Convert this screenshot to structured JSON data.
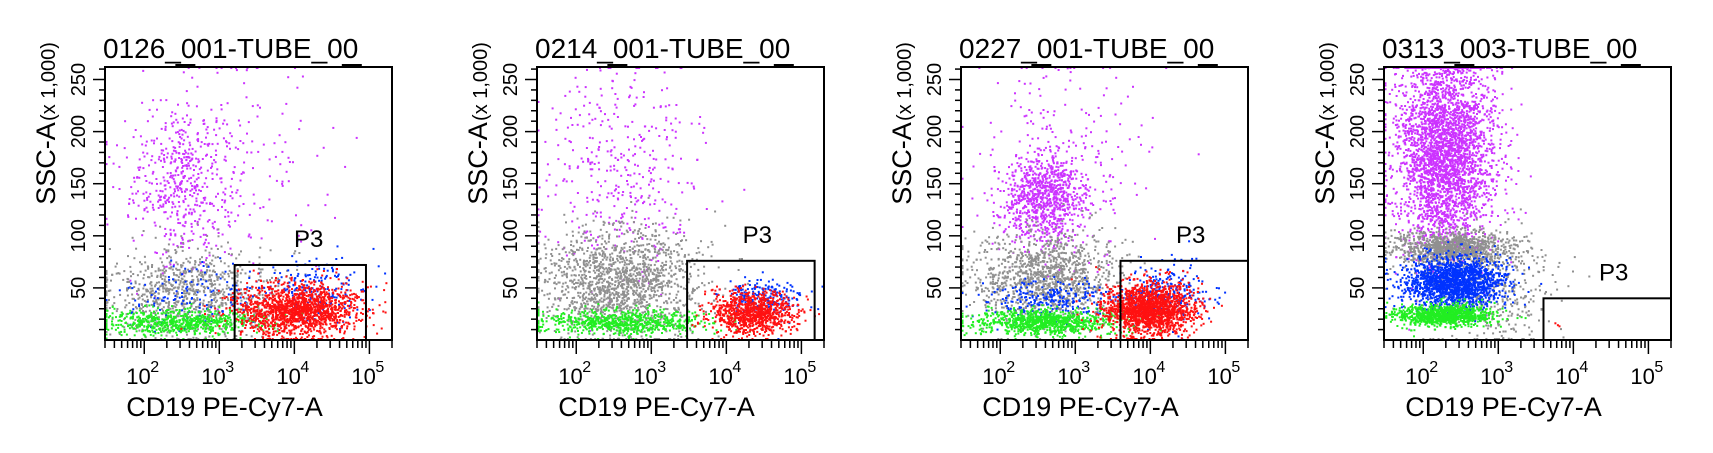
{
  "chart_data": [
    {
      "type": "scatter",
      "title": "0126_001-TUBE_00",
      "xlabel": "CD19 PE-Cy7-A",
      "ylabel": "SSC-A",
      "ylabel_units": "(x 1,000)",
      "x_scale": "log",
      "xlim": [
        30,
        200000
      ],
      "ylim": [
        0,
        262
      ],
      "x_ticks": [
        100,
        1000,
        10000,
        100000
      ],
      "y_ticks": [
        50,
        100,
        150,
        200,
        250
      ],
      "gate": {
        "label": "P3",
        "x": [
          1600,
          90000
        ],
        "y": [
          0,
          72
        ]
      },
      "populations": [
        {
          "color": "#cc33ff",
          "n": 650,
          "clusters": [
            {
              "w": 0.7,
              "lx": 2.5,
              "sx": 0.35,
              "y": 155,
              "sy": 38
            },
            {
              "w": 0.3,
              "lx": 3.2,
              "sx": 0.7,
              "y": 170,
              "sy": 55
            }
          ]
        },
        {
          "color": "#909090",
          "n": 900,
          "clusters": [
            {
              "w": 1.0,
              "lx": 2.6,
              "sx": 0.6,
              "y": 45,
              "sy": 22
            }
          ]
        },
        {
          "color": "#0033ff",
          "n": 330,
          "clusters": [
            {
              "w": 0.6,
              "lx": 4.3,
              "sx": 0.35,
              "y": 48,
              "sy": 14
            },
            {
              "w": 0.4,
              "lx": 2.7,
              "sx": 0.5,
              "y": 40,
              "sy": 15
            }
          ]
        },
        {
          "color": "#22ee22",
          "n": 650,
          "clusters": [
            {
              "w": 1.0,
              "lx": 2.5,
              "sx": 0.55,
              "y": 17,
              "sy": 6
            }
          ]
        },
        {
          "color": "#ff1111",
          "n": 1500,
          "clusters": [
            {
              "w": 1.0,
              "lx": 4.05,
              "sx": 0.4,
              "y": 28,
              "sy": 13
            }
          ]
        }
      ]
    },
    {
      "type": "scatter",
      "title": "0214_001-TUBE_00",
      "xlabel": "CD19 PE-Cy7-A",
      "ylabel": "SSC-A",
      "ylabel_units": "(x 1,000)",
      "x_scale": "log",
      "xlim": [
        30,
        200000
      ],
      "ylim": [
        0,
        262
      ],
      "x_ticks": [
        100,
        1000,
        10000,
        100000
      ],
      "y_ticks": [
        50,
        100,
        150,
        200,
        250
      ],
      "gate": {
        "label": "P3",
        "x": [
          3000,
          150000
        ],
        "y": [
          0,
          76
        ]
      },
      "populations": [
        {
          "color": "#cc33ff",
          "n": 380,
          "clusters": [
            {
              "w": 1.0,
              "lx": 2.6,
              "sx": 0.55,
              "y": 165,
              "sy": 55
            }
          ]
        },
        {
          "color": "#909090",
          "n": 1500,
          "clusters": [
            {
              "w": 1.0,
              "lx": 2.6,
              "sx": 0.55,
              "y": 55,
              "sy": 26
            }
          ]
        },
        {
          "color": "#0033ff",
          "n": 220,
          "clusters": [
            {
              "w": 1.0,
              "lx": 4.5,
              "sx": 0.25,
              "y": 40,
              "sy": 10
            }
          ]
        },
        {
          "color": "#22ee22",
          "n": 700,
          "clusters": [
            {
              "w": 1.0,
              "lx": 2.6,
              "sx": 0.55,
              "y": 17,
              "sy": 6
            }
          ]
        },
        {
          "color": "#ff1111",
          "n": 900,
          "clusters": [
            {
              "w": 1.0,
              "lx": 4.35,
              "sx": 0.28,
              "y": 26,
              "sy": 10
            }
          ]
        }
      ]
    },
    {
      "type": "scatter",
      "title": "0227_001-TUBE_00",
      "xlabel": "CD19 PE-Cy7-A",
      "ylabel": "SSC-A",
      "ylabel_units": "(x 1,000)",
      "x_scale": "log",
      "xlim": [
        30,
        200000
      ],
      "ylim": [
        0,
        262
      ],
      "x_ticks": [
        100,
        1000,
        10000,
        100000
      ],
      "y_ticks": [
        50,
        100,
        150,
        200,
        250
      ],
      "gate": {
        "label": "P3",
        "x": [
          4000,
          200000
        ],
        "y": [
          0,
          76
        ]
      },
      "populations": [
        {
          "color": "#cc33ff",
          "n": 1100,
          "clusters": [
            {
              "w": 0.8,
              "lx": 2.6,
              "sx": 0.28,
              "y": 135,
              "sy": 22
            },
            {
              "w": 0.2,
              "lx": 2.8,
              "sx": 0.6,
              "y": 170,
              "sy": 50
            }
          ]
        },
        {
          "color": "#909090",
          "n": 1200,
          "clusters": [
            {
              "w": 1.0,
              "lx": 2.6,
              "sx": 0.5,
              "y": 60,
              "sy": 22
            }
          ]
        },
        {
          "color": "#0033ff",
          "n": 500,
          "clusters": [
            {
              "w": 0.5,
              "lx": 2.7,
              "sx": 0.45,
              "y": 38,
              "sy": 10
            },
            {
              "w": 0.5,
              "lx": 4.2,
              "sx": 0.3,
              "y": 45,
              "sy": 14
            }
          ]
        },
        {
          "color": "#22ee22",
          "n": 900,
          "clusters": [
            {
              "w": 1.0,
              "lx": 2.6,
              "sx": 0.5,
              "y": 17,
              "sy": 6
            }
          ]
        },
        {
          "color": "#ff1111",
          "n": 1700,
          "clusters": [
            {
              "w": 1.0,
              "lx": 4.0,
              "sx": 0.3,
              "y": 30,
              "sy": 12
            }
          ]
        }
      ]
    },
    {
      "type": "scatter",
      "title": "0313_003-TUBE_00",
      "xlabel": "CD19 PE-Cy7-A",
      "ylabel": "SSC-A",
      "ylabel_units": "(x 1,000)",
      "x_scale": "log",
      "xlim": [
        30,
        200000
      ],
      "ylim": [
        0,
        262
      ],
      "x_ticks": [
        100,
        1000,
        10000,
        100000
      ],
      "y_ticks": [
        50,
        100,
        150,
        200,
        250
      ],
      "gate": {
        "label": "P3",
        "x": [
          4000,
          200000
        ],
        "y": [
          0,
          40
        ]
      },
      "populations": [
        {
          "color": "#cc33ff",
          "n": 3200,
          "clusters": [
            {
              "w": 1.0,
              "lx": 2.3,
              "sx": 0.32,
              "y": 180,
              "sy": 50
            }
          ]
        },
        {
          "color": "#909090",
          "n": 1500,
          "clusters": [
            {
              "w": 0.7,
              "lx": 2.4,
              "sx": 0.4,
              "y": 88,
              "sy": 8
            },
            {
              "w": 0.3,
              "lx": 2.9,
              "sx": 0.45,
              "y": 45,
              "sy": 25
            }
          ]
        },
        {
          "color": "#0033ff",
          "n": 1700,
          "clusters": [
            {
              "w": 1.0,
              "lx": 2.4,
              "sx": 0.32,
              "y": 55,
              "sy": 12
            }
          ]
        },
        {
          "color": "#22ee22",
          "n": 1000,
          "clusters": [
            {
              "w": 1.0,
              "lx": 2.3,
              "sx": 0.32,
              "y": 24,
              "sy": 5
            }
          ]
        },
        {
          "color": "#ff1111",
          "n": 3,
          "clusters": [
            {
              "w": 1.0,
              "lx": 3.8,
              "sx": 0.05,
              "y": 14,
              "sy": 3
            }
          ]
        }
      ]
    }
  ]
}
